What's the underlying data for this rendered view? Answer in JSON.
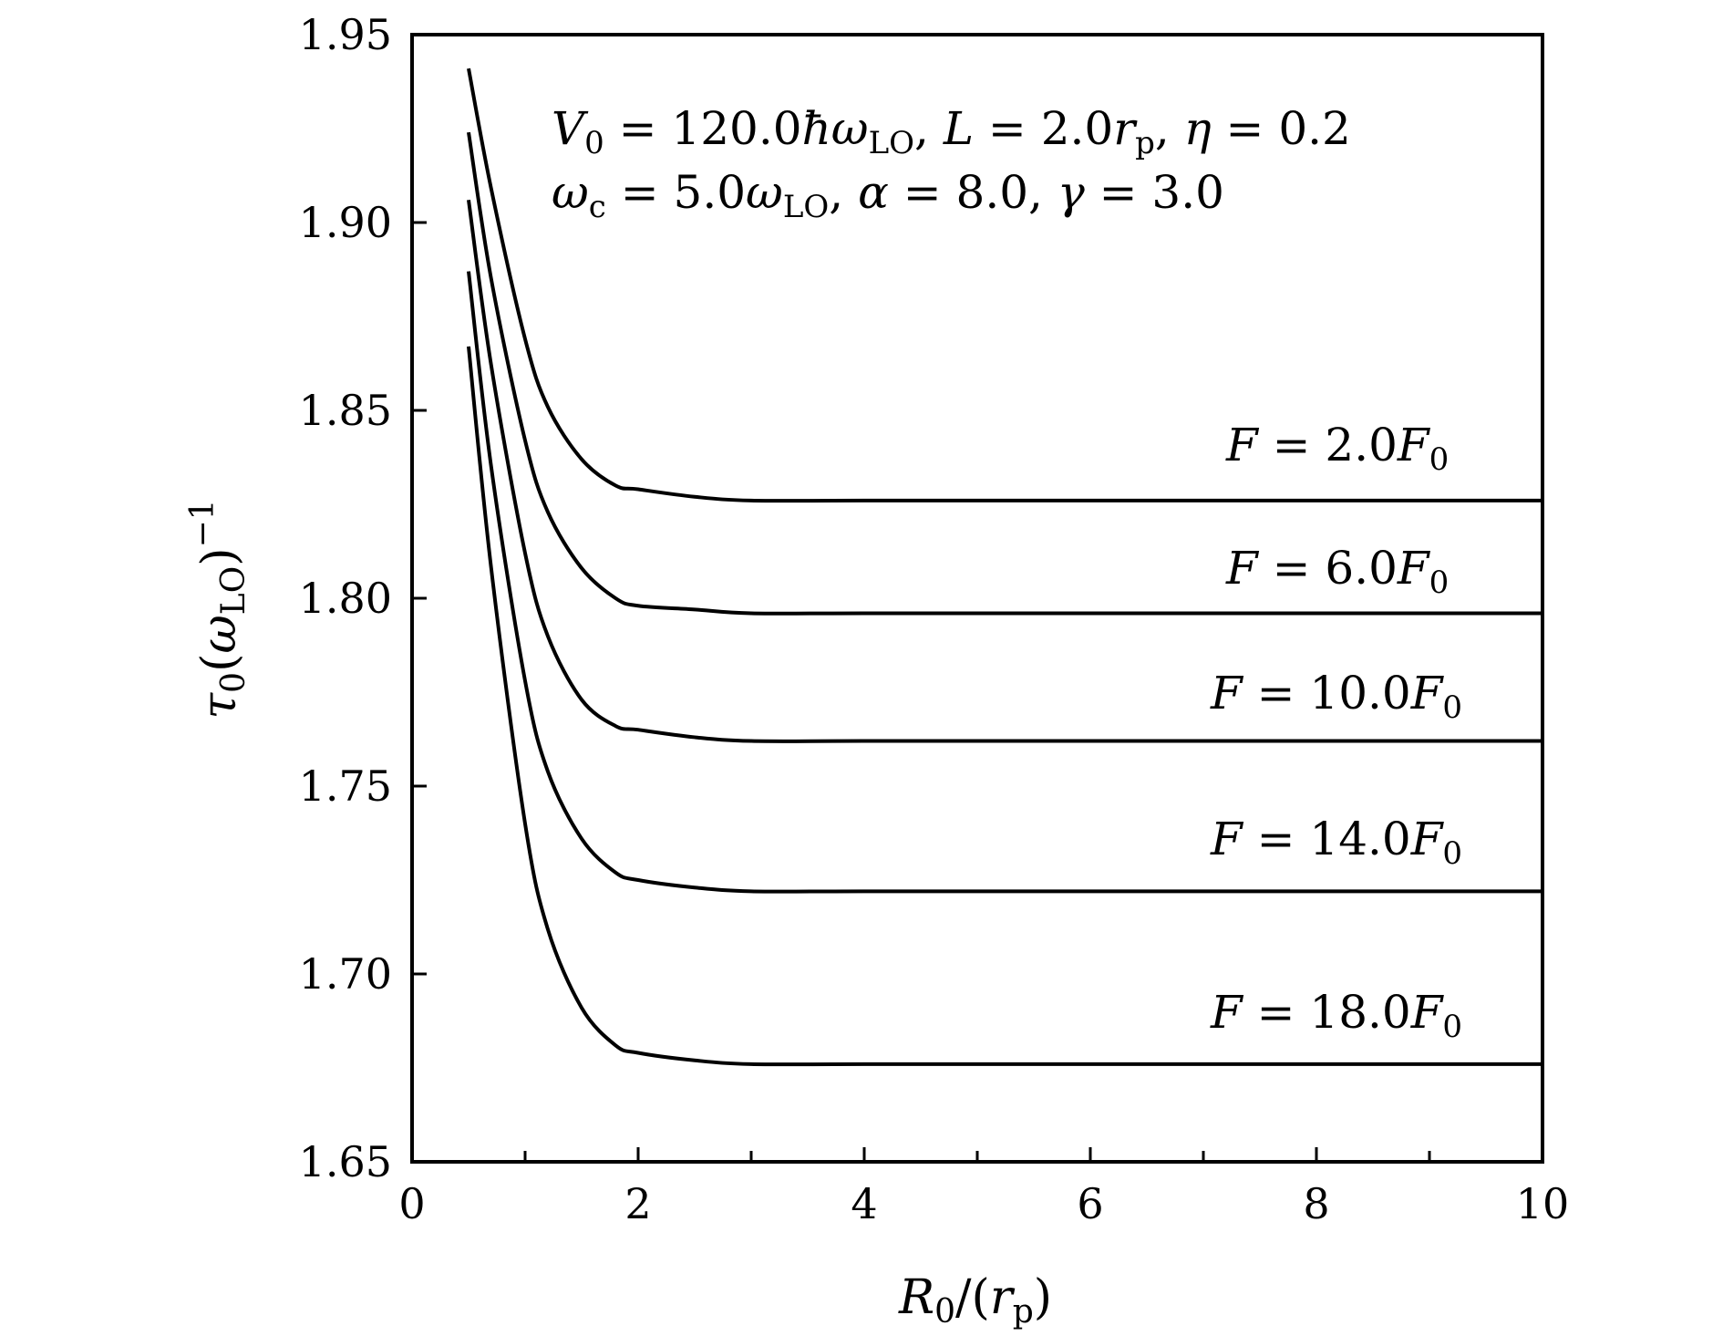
{
  "chart_data": {
    "type": "line",
    "xlabel": "R0/(rp)",
    "ylabel": "τ0(ωLO)−1",
    "xlim": [
      0,
      10
    ],
    "ylim": [
      1.65,
      1.95
    ],
    "grid": false,
    "x_ticks": [
      "0",
      "2",
      "4",
      "6",
      "8",
      "10"
    ],
    "y_ticks": [
      "1.65",
      "1.70",
      "1.75",
      "1.80",
      "1.85",
      "1.90",
      "1.95"
    ],
    "annotation_lines": [
      "V0 = 120.0ħωLO, L = 2.0rp, η = 0.2",
      "ωc = 5.0ωLO, α = 8.0, γ = 3.0"
    ],
    "series": [
      {
        "name": "F = 2.0F0",
        "x": [
          0.5,
          0.7,
          1.0,
          1.2,
          1.5,
          1.8,
          2.0,
          2.5,
          3.0,
          4.0,
          6.0,
          8.0,
          10.0
        ],
        "y": [
          1.941,
          1.909,
          1.869,
          1.851,
          1.837,
          1.83,
          1.829,
          1.827,
          1.826,
          1.826,
          1.826,
          1.826,
          1.826
        ]
      },
      {
        "name": "F = 6.0F0",
        "x": [
          0.5,
          0.7,
          1.0,
          1.2,
          1.5,
          1.8,
          2.0,
          2.5,
          3.0,
          4.0,
          6.0,
          8.0,
          10.0
        ],
        "y": [
          1.924,
          1.885,
          1.842,
          1.823,
          1.808,
          1.8,
          1.798,
          1.797,
          1.796,
          1.796,
          1.796,
          1.796,
          1.796
        ]
      },
      {
        "name": "F = 10.0F0",
        "x": [
          0.5,
          0.7,
          1.0,
          1.2,
          1.5,
          1.8,
          2.0,
          2.5,
          3.0,
          4.0,
          6.0,
          8.0,
          10.0
        ],
        "y": [
          1.906,
          1.862,
          1.812,
          1.79,
          1.773,
          1.766,
          1.765,
          1.763,
          1.762,
          1.762,
          1.762,
          1.762,
          1.762
        ]
      },
      {
        "name": "F = 14.0F0",
        "x": [
          0.5,
          0.7,
          1.0,
          1.2,
          1.5,
          1.8,
          2.0,
          2.5,
          3.0,
          4.0,
          6.0,
          8.0,
          10.0
        ],
        "y": [
          1.887,
          1.835,
          1.778,
          1.754,
          1.736,
          1.727,
          1.725,
          1.723,
          1.722,
          1.722,
          1.722,
          1.722,
          1.722
        ]
      },
      {
        "name": "F = 18.0F0",
        "x": [
          0.5,
          0.7,
          1.0,
          1.2,
          1.5,
          1.8,
          2.0,
          2.5,
          3.0,
          4.0,
          6.0,
          8.0,
          10.0
        ],
        "y": [
          1.867,
          1.808,
          1.74,
          1.712,
          1.691,
          1.681,
          1.679,
          1.677,
          1.676,
          1.676,
          1.676,
          1.676,
          1.676
        ]
      }
    ]
  }
}
